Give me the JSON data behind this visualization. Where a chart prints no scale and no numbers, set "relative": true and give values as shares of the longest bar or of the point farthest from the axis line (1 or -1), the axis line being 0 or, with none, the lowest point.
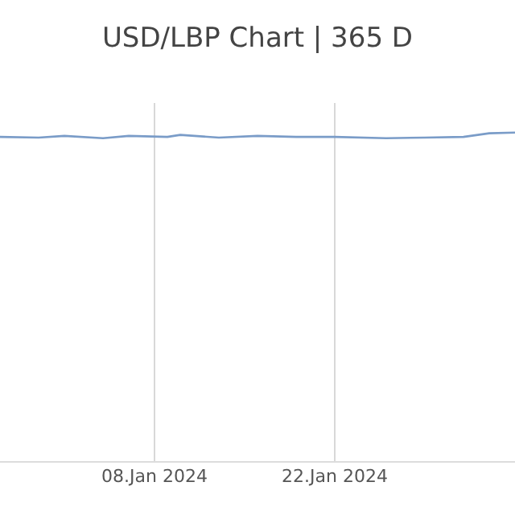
{
  "chart_data": {
    "type": "line",
    "title": "USD/LBP Chart | 365 D",
    "relative": true,
    "x": [
      "2023-12-27",
      "2023-12-30",
      "2024-01-01",
      "2024-01-04",
      "2024-01-06",
      "2024-01-09",
      "2024-01-10",
      "2024-01-13",
      "2024-01-16",
      "2024-01-19",
      "2024-01-22",
      "2024-01-26",
      "2024-01-29",
      "2024-02-01",
      "2024-02-03",
      "2024-02-05"
    ],
    "series": [
      {
        "color": "#7a9cc8",
        "values": [
          0.987,
          0.985,
          0.99,
          0.983,
          0.99,
          0.987,
          0.993,
          0.985,
          0.99,
          0.987,
          0.987,
          0.983,
          0.985,
          0.987,
          0.998,
          1.0
        ]
      }
    ],
    "xlim": [
      "2023-12-27",
      "2024-02-05"
    ],
    "xticks": [
      {
        "value": "2024-01-08",
        "label": "08.Jan 2024"
      },
      {
        "value": "2024-01-22",
        "label": "22.Jan 2024"
      }
    ],
    "grid": "x",
    "legend": false,
    "marker": "none",
    "line_style": "solid"
  }
}
